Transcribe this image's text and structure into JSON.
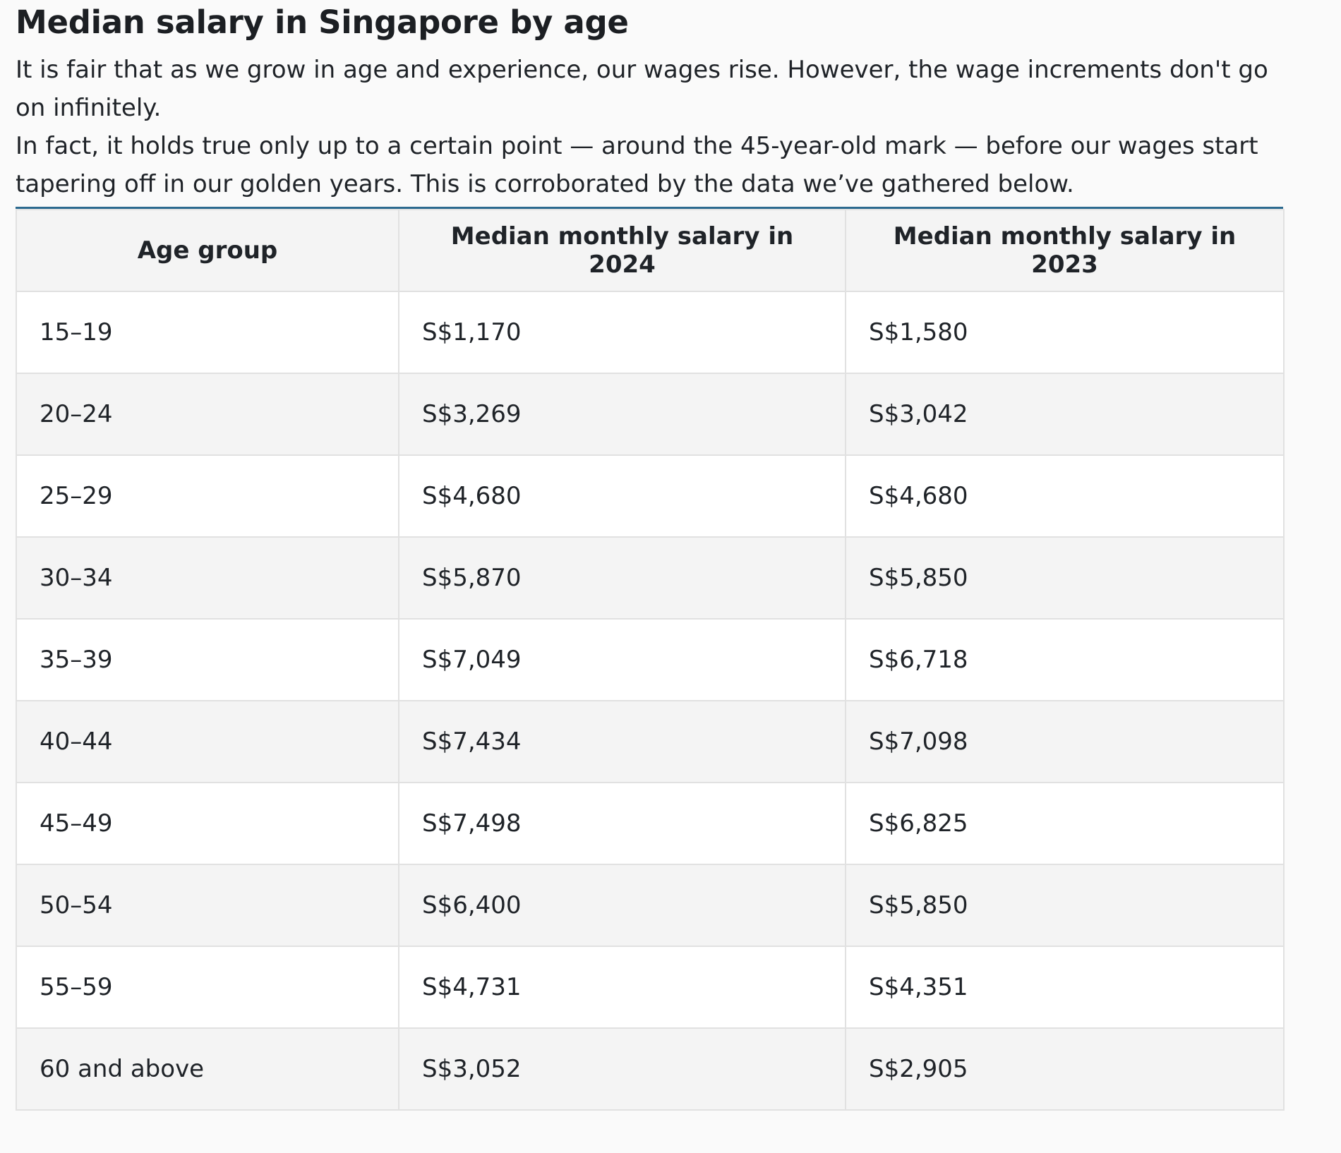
{
  "title": "Median salary in Singapore by age",
  "intro": {
    "p1": "It is fair that as we grow in age and experience, our wages rise. However, the wage increments don't go on infinitely.",
    "p2": "In fact, it holds true only up to a certain point — around the 45-year-old mark — before our wages start tapering off in our golden years. This is corroborated by the data we’ve gathered below."
  },
  "table": {
    "headers": [
      "Age group",
      "Median monthly salary in 2024",
      "Median monthly salary in 2023"
    ],
    "rows": [
      [
        "15–19",
        "S$1,170",
        "S$1,580"
      ],
      [
        "20–24",
        "S$3,269",
        "S$3,042"
      ],
      [
        "25–29",
        "S$4,680",
        "S$4,680"
      ],
      [
        "30–34",
        "S$5,870",
        "S$5,850"
      ],
      [
        "35–39",
        "S$7,049",
        "S$6,718"
      ],
      [
        "40–44",
        "S$7,434",
        "S$7,098"
      ],
      [
        "45–49",
        "S$7,498",
        "S$6,825"
      ],
      [
        "50–54",
        "S$6,400",
        "S$5,850"
      ],
      [
        "55–59",
        "S$4,731",
        "S$4,351"
      ],
      [
        "60 and above",
        "S$3,052",
        "S$2,905"
      ]
    ]
  }
}
